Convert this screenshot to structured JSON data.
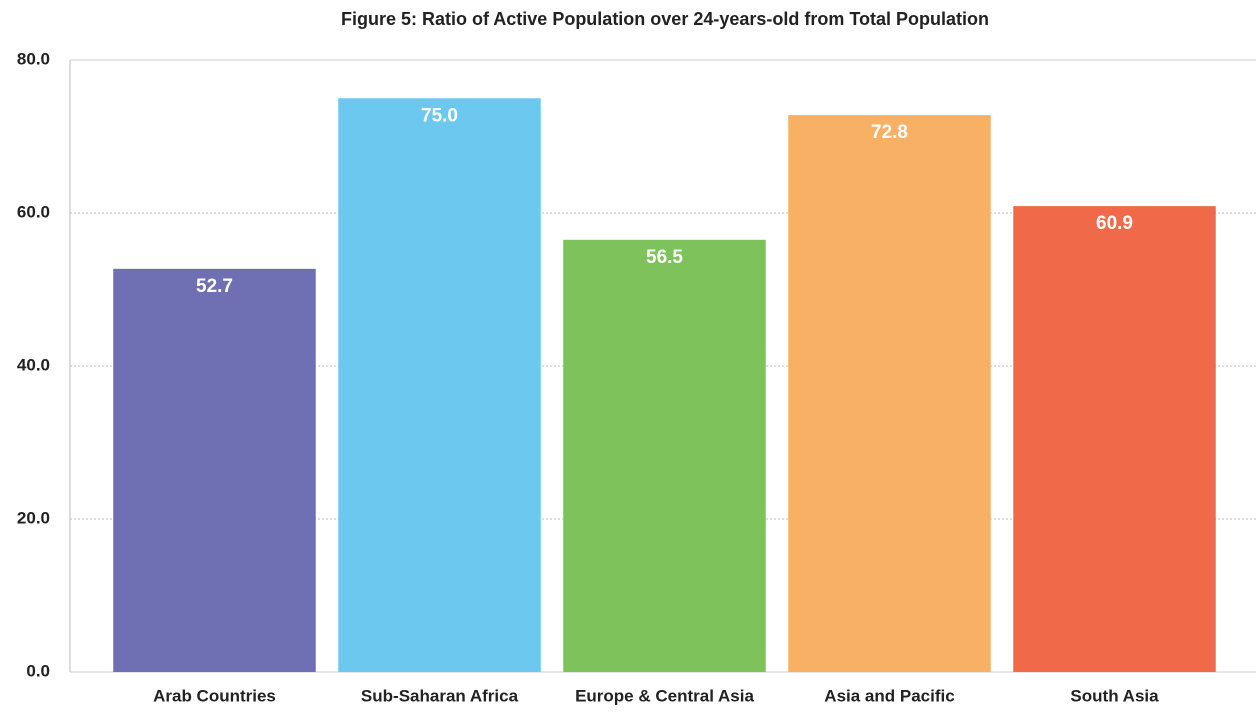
{
  "chart_data": {
    "type": "bar",
    "title": "Figure 5: Ratio of Active Population over 24-years-old from Total Population",
    "categories": [
      "Arab Countries",
      "Sub-Saharan Africa",
      "Europe & Central Asia",
      "Asia and Pacific",
      "South Asia"
    ],
    "values": [
      52.7,
      75.0,
      56.5,
      72.8,
      60.9
    ],
    "value_labels": [
      "52.7",
      "75.0",
      "56.5",
      "72.8",
      "60.9"
    ],
    "colors": [
      "#6f6fb3",
      "#6dc8f0",
      "#7dc25b",
      "#f7b064",
      "#f06a4a"
    ],
    "ylim": [
      0,
      80
    ],
    "yticks": [
      {
        "value": 0,
        "label": "0.0"
      },
      {
        "value": 20,
        "label": "20.0"
      },
      {
        "value": 40,
        "label": "40.0"
      },
      {
        "value": 60,
        "label": "60.0"
      },
      {
        "value": 80,
        "label": "80.0"
      }
    ],
    "grid": true
  }
}
